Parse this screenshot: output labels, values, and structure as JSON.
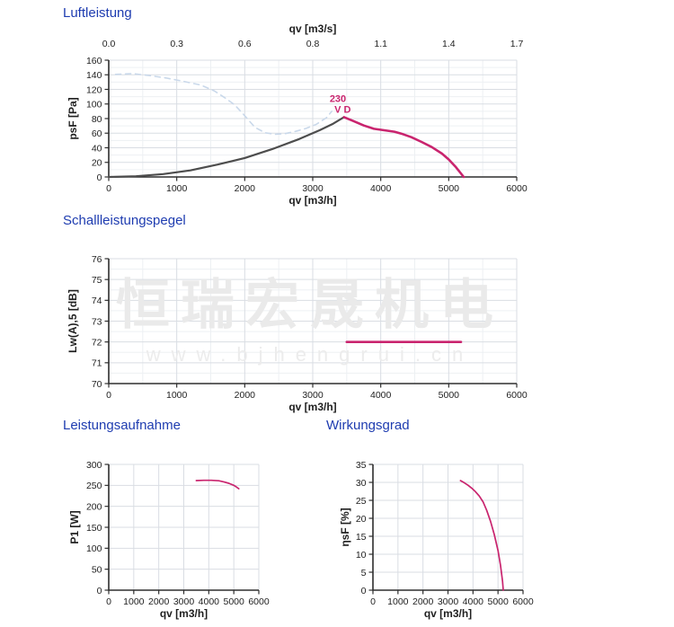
{
  "watermark": {
    "text": "恒瑞宏晟机电",
    "url": "www.bjhengrui.cn"
  },
  "colors": {
    "section_title_blue": "#1e3cb0",
    "magenta_curve": "#c9246e",
    "dark_gray_curve": "#4d4d4d",
    "light_blue_dashed_curve": "#c9d8ea",
    "grid_major": "#d9dde3",
    "grid_minor": "#edf0f3",
    "axis_line": "#2e2e2e",
    "watermark_gray": "#eaeaea"
  },
  "chart_data": [
    {
      "id": "luftleistung",
      "type": "line",
      "title": "Luftleistung",
      "xlabel": "qv [m3/h]",
      "ylabel": "psF [Pa]",
      "x2label": "qv [m3/s]",
      "xlim": [
        0,
        6000
      ],
      "ylim": [
        0,
        160
      ],
      "xticks": [
        [
          0,
          "0"
        ],
        [
          1000,
          "1000"
        ],
        [
          2000,
          "2000"
        ],
        [
          3000,
          "3000"
        ],
        [
          4000,
          "4000"
        ],
        [
          5000,
          "5000"
        ],
        [
          6000,
          "6000"
        ]
      ],
      "yticks": [
        [
          0,
          "0"
        ],
        [
          20,
          "20"
        ],
        [
          40,
          "40"
        ],
        [
          60,
          "60"
        ],
        [
          80,
          "80"
        ],
        [
          100,
          "100"
        ],
        [
          120,
          "120"
        ],
        [
          140,
          "140"
        ],
        [
          160,
          "160"
        ]
      ],
      "x2ticks": [
        [
          0,
          "0.0"
        ],
        [
          1000,
          "0.3"
        ],
        [
          2000,
          "0.6"
        ],
        [
          3000,
          "0.8"
        ],
        [
          4000,
          "1.1"
        ],
        [
          5000,
          "1.4"
        ],
        [
          6000,
          "1.7"
        ]
      ],
      "minor_x": 500,
      "minor_y": 10,
      "grid": true,
      "series": [
        {
          "name": "free-blow-dashed-curve",
          "color": "#c9d8ea",
          "width": 1.6,
          "dash": "6 5",
          "points": [
            [
              100,
              140.5
            ],
            [
              350,
              141.5
            ],
            [
              600,
              139
            ],
            [
              850,
              135.5
            ],
            [
              1100,
              131
            ],
            [
              1350,
              126
            ],
            [
              1550,
              118
            ],
            [
              1700,
              109
            ],
            [
              1850,
              99
            ],
            [
              2000,
              84
            ],
            [
              2150,
              68
            ],
            [
              2300,
              60.5
            ],
            [
              2450,
              58.5
            ],
            [
              2600,
              59.5
            ],
            [
              2750,
              62.5
            ],
            [
              2900,
              66.5
            ],
            [
              3050,
              72
            ],
            [
              3200,
              81
            ],
            [
              3280,
              90
            ]
          ]
        },
        {
          "name": "system-resistance-curve",
          "color": "#4d4d4d",
          "width": 2.2,
          "dash": null,
          "points": [
            [
              0,
              0
            ],
            [
              400,
              1
            ],
            [
              800,
              4
            ],
            [
              1200,
              9
            ],
            [
              1600,
              17
            ],
            [
              2000,
              26
            ],
            [
              2400,
              38
            ],
            [
              2800,
              52
            ],
            [
              3100,
              64
            ],
            [
              3300,
              73
            ],
            [
              3460,
              82
            ]
          ]
        },
        {
          "name": "fan-curve-230v",
          "color": "#c9246e",
          "width": 2.6,
          "dash": null,
          "points": [
            [
              3460,
              82
            ],
            [
              3600,
              76.5
            ],
            [
              3750,
              70.5
            ],
            [
              3900,
              66
            ],
            [
              4050,
              64
            ],
            [
              4200,
              62
            ],
            [
              4300,
              59.5
            ],
            [
              4450,
              54.5
            ],
            [
              4600,
              48
            ],
            [
              4750,
              41
            ],
            [
              4900,
              32
            ],
            [
              5000,
              24
            ],
            [
              5100,
              14
            ],
            [
              5220,
              0
            ]
          ]
        }
      ],
      "annotations": [
        {
          "text": "230",
          "x": 3370,
          "y": 103,
          "color": "#c9246e"
        },
        {
          "text": "V D",
          "x": 3440,
          "y": 88,
          "color": "#c9246e"
        }
      ]
    },
    {
      "id": "schallleistungspegel",
      "type": "line",
      "title": "Schallleistungspegel",
      "xlabel": "qv [m3/h]",
      "ylabel": "Lw(A),5 [dB]",
      "xlim": [
        0,
        6000
      ],
      "ylim": [
        70,
        76
      ],
      "xticks": [
        [
          0,
          "0"
        ],
        [
          1000,
          "1000"
        ],
        [
          2000,
          "2000"
        ],
        [
          3000,
          "3000"
        ],
        [
          4000,
          "4000"
        ],
        [
          5000,
          "5000"
        ],
        [
          6000,
          "6000"
        ]
      ],
      "yticks": [
        [
          70,
          "70"
        ],
        [
          71,
          "71"
        ],
        [
          72,
          "72"
        ],
        [
          73,
          "73"
        ],
        [
          74,
          "74"
        ],
        [
          75,
          "75"
        ],
        [
          76,
          "76"
        ]
      ],
      "minor_x": 500,
      "minor_y": 0.5,
      "grid": true,
      "watermark_overlay": true,
      "series": [
        {
          "name": "sound-power-level-curve",
          "color": "#c9246e",
          "width": 2.6,
          "dash": null,
          "points": [
            [
              3500,
              72
            ],
            [
              5180,
              72
            ]
          ]
        }
      ],
      "annotations": []
    },
    {
      "id": "leistungsaufnahme",
      "type": "line",
      "title": "Leistungsaufnahme",
      "xlabel": "qv [m3/h]",
      "ylabel": "P1 [W]",
      "xlim": [
        0,
        6000
      ],
      "ylim": [
        0,
        300
      ],
      "xticks": [
        [
          0,
          "0"
        ],
        [
          1000,
          "1000"
        ],
        [
          2000,
          "2000"
        ],
        [
          3000,
          "3000"
        ],
        [
          4000,
          "4000"
        ],
        [
          5000,
          "5000"
        ],
        [
          6000,
          "6000"
        ]
      ],
      "yticks": [
        [
          0,
          "0"
        ],
        [
          50,
          "50"
        ],
        [
          100,
          "100"
        ],
        [
          150,
          "150"
        ],
        [
          200,
          "200"
        ],
        [
          250,
          "250"
        ],
        [
          300,
          "300"
        ]
      ],
      "minor_x": null,
      "minor_y": null,
      "grid": true,
      "series": [
        {
          "name": "power-input-curve",
          "color": "#c9246e",
          "width": 1.7,
          "dash": null,
          "points": [
            [
              3500,
              261.5
            ],
            [
              3800,
              262
            ],
            [
              4100,
              262
            ],
            [
              4400,
              261
            ],
            [
              4600,
              258.5
            ],
            [
              4800,
              255
            ],
            [
              5000,
              250
            ],
            [
              5100,
              246.5
            ],
            [
              5200,
              242
            ]
          ]
        }
      ],
      "annotations": []
    },
    {
      "id": "wirkungsgrad",
      "type": "line",
      "title": "Wirkungsgrad",
      "xlabel": "qv [m3/h]",
      "ylabel": "ηsF [%]",
      "xlim": [
        0,
        6000
      ],
      "ylim": [
        0,
        35
      ],
      "xticks": [
        [
          0,
          "0"
        ],
        [
          1000,
          "1000"
        ],
        [
          2000,
          "2000"
        ],
        [
          3000,
          "3000"
        ],
        [
          4000,
          "4000"
        ],
        [
          5000,
          "5000"
        ],
        [
          6000,
          "6000"
        ]
      ],
      "yticks": [
        [
          0,
          "0"
        ],
        [
          5,
          "5"
        ],
        [
          10,
          "10"
        ],
        [
          15,
          "15"
        ],
        [
          20,
          "20"
        ],
        [
          25,
          "25"
        ],
        [
          30,
          "30"
        ],
        [
          35,
          "35"
        ]
      ],
      "minor_x": null,
      "minor_y": null,
      "grid": true,
      "series": [
        {
          "name": "efficiency-curve",
          "color": "#c9246e",
          "width": 1.7,
          "dash": null,
          "points": [
            [
              3500,
              30.5
            ],
            [
              3650,
              29.9
            ],
            [
              3800,
              29.2
            ],
            [
              3950,
              28.4
            ],
            [
              4100,
              27.4
            ],
            [
              4250,
              26.2
            ],
            [
              4400,
              24.6
            ],
            [
              4550,
              22.2
            ],
            [
              4700,
              19.2
            ],
            [
              4850,
              15.5
            ],
            [
              5000,
              11
            ],
            [
              5100,
              7
            ],
            [
              5180,
              2.5
            ],
            [
              5210,
              0
            ]
          ]
        }
      ],
      "annotations": []
    }
  ]
}
